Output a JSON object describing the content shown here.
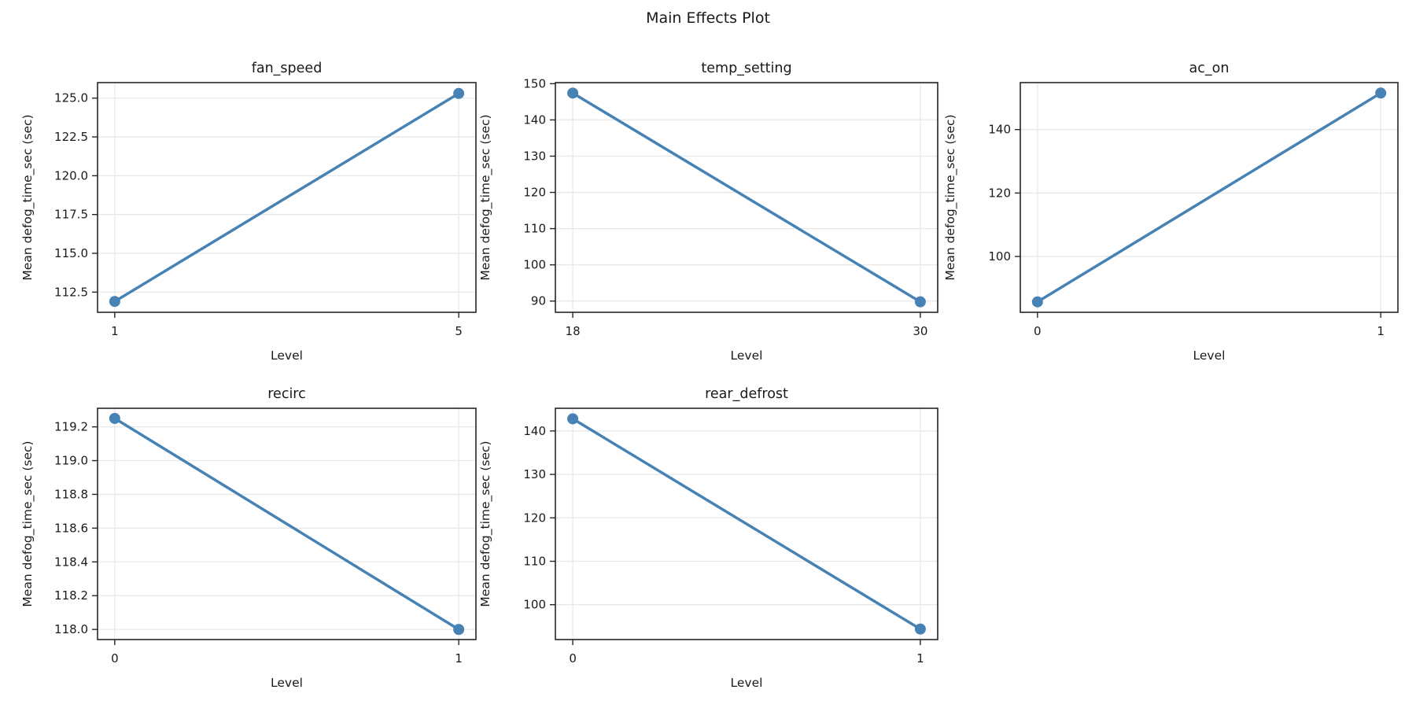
{
  "figure": {
    "title": "Main Effects Plot"
  },
  "style": {
    "line_color": "#4682b4",
    "grid_color": "#e8e8e8",
    "spine_color": "#262626",
    "text_color": "#1a1a1a",
    "background_color": "#ffffff"
  },
  "chart_data": [
    {
      "type": "line",
      "title": "fan_speed",
      "xlabel": "Level",
      "ylabel": "Mean defog_time_sec (sec)",
      "x": [
        1,
        5
      ],
      "values": [
        111.9,
        125.3
      ],
      "xtick_labels": [
        "1",
        "5"
      ],
      "ytick_labels": [
        "112.5",
        "115.0",
        "117.5",
        "120.0",
        "122.5",
        "125.0"
      ],
      "xlim": [
        0.8,
        5.2
      ],
      "ylim": [
        111.2,
        126.0
      ],
      "grid": true,
      "legend": "none"
    },
    {
      "type": "line",
      "title": "temp_setting",
      "xlabel": "Level",
      "ylabel": "Mean defog_time_sec (sec)",
      "x": [
        18,
        30
      ],
      "values": [
        147.4,
        89.8
      ],
      "xtick_labels": [
        "18",
        "30"
      ],
      "ytick_labels": [
        "90",
        "100",
        "110",
        "120",
        "130",
        "140",
        "150"
      ],
      "xlim": [
        17.4,
        30.6
      ],
      "ylim": [
        86.9,
        150.3
      ],
      "grid": true,
      "legend": "none"
    },
    {
      "type": "line",
      "title": "ac_on",
      "xlabel": "Level",
      "ylabel": "Mean defog_time_sec (sec)",
      "x": [
        0,
        1
      ],
      "values": [
        85.7,
        151.5
      ],
      "xtick_labels": [
        "0",
        "1"
      ],
      "ytick_labels": [
        "100",
        "120",
        "140"
      ],
      "xlim": [
        -0.05,
        1.05
      ],
      "ylim": [
        82.4,
        154.8
      ],
      "grid": true,
      "legend": "none"
    },
    {
      "type": "line",
      "title": "recirc",
      "xlabel": "Level",
      "ylabel": "Mean defog_time_sec (sec)",
      "x": [
        0,
        1
      ],
      "values": [
        119.25,
        118.0
      ],
      "xtick_labels": [
        "0",
        "1"
      ],
      "ytick_labels": [
        "118.0",
        "118.2",
        "118.4",
        "118.6",
        "118.8",
        "119.0",
        "119.2"
      ],
      "xlim": [
        -0.05,
        1.05
      ],
      "ylim": [
        117.94,
        119.31
      ],
      "grid": true,
      "legend": "none"
    },
    {
      "type": "line",
      "title": "rear_defrost",
      "xlabel": "Level",
      "ylabel": "Mean defog_time_sec (sec)",
      "x": [
        0,
        1
      ],
      "values": [
        142.8,
        94.4
      ],
      "xtick_labels": [
        "0",
        "1"
      ],
      "ytick_labels": [
        "100",
        "110",
        "120",
        "130",
        "140"
      ],
      "xlim": [
        -0.05,
        1.05
      ],
      "ylim": [
        91.98,
        145.22
      ],
      "grid": true,
      "legend": "none"
    }
  ]
}
